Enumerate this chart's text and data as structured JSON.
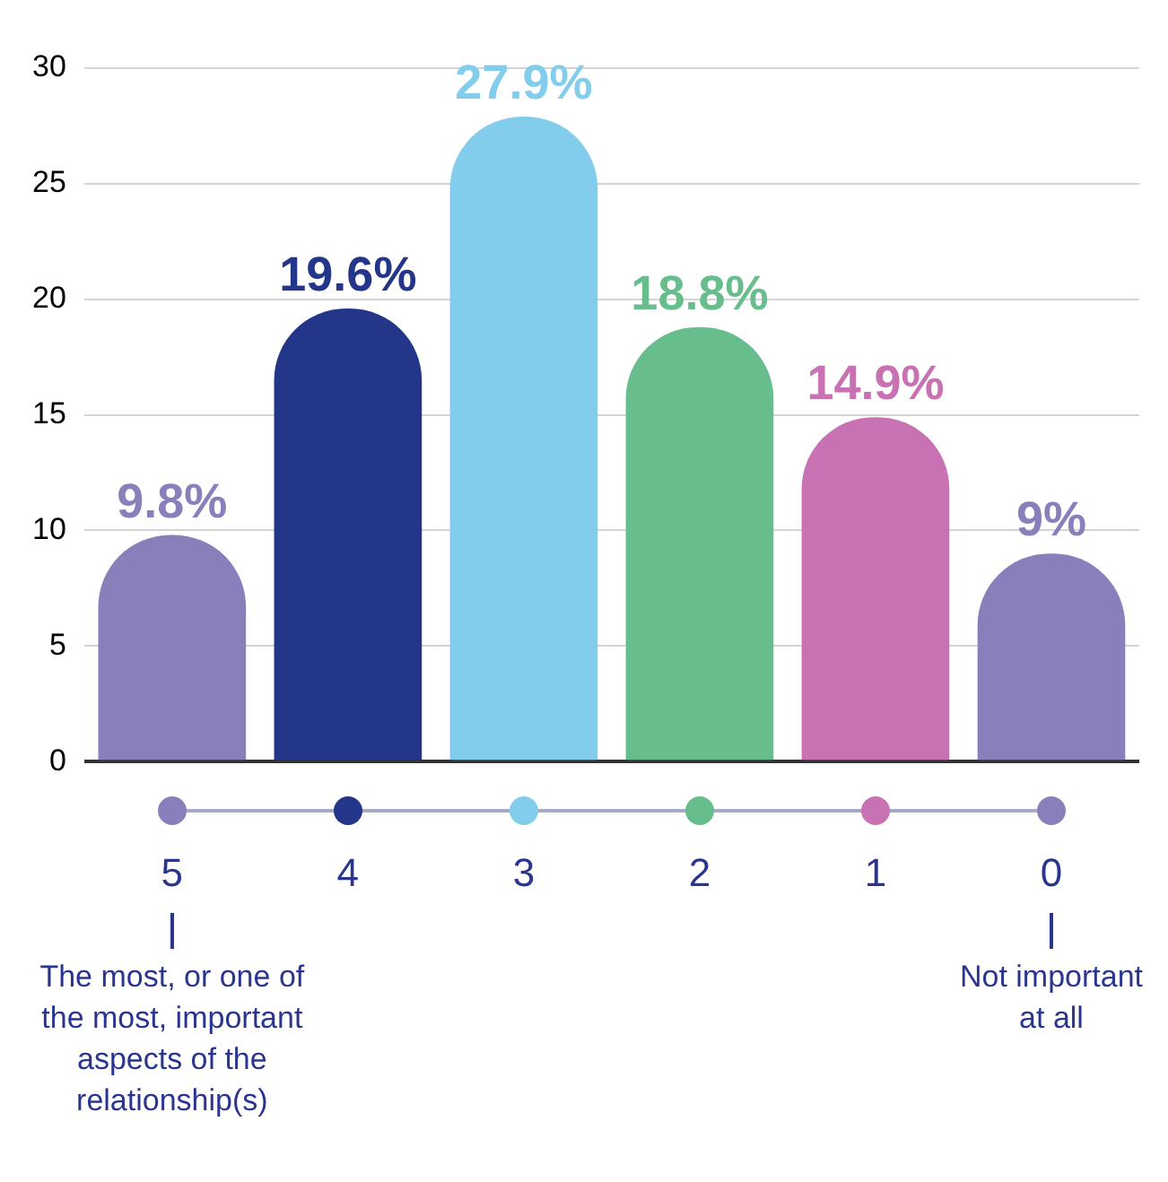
{
  "chart_data": {
    "type": "bar",
    "categories": [
      "5",
      "4",
      "3",
      "2",
      "1",
      "0"
    ],
    "values": [
      9.8,
      19.6,
      27.9,
      18.8,
      14.9,
      9
    ],
    "colors": [
      "#8a7fba",
      "#24368a",
      "#83cdec",
      "#67bd8b",
      "#c872b3",
      "#8a7fba"
    ],
    "value_labels": [
      "9.8%",
      "19.6%",
      "27.9%",
      "18.8%",
      "14.9%",
      "9%"
    ],
    "ylim": [
      0,
      30
    ],
    "yticks": [
      0,
      5,
      10,
      15,
      20,
      25,
      30
    ],
    "grid": "y",
    "legend": false,
    "annotations": [
      "The most, or one of the most, important aspects of the relationship(s)",
      "Not important at all"
    ]
  }
}
